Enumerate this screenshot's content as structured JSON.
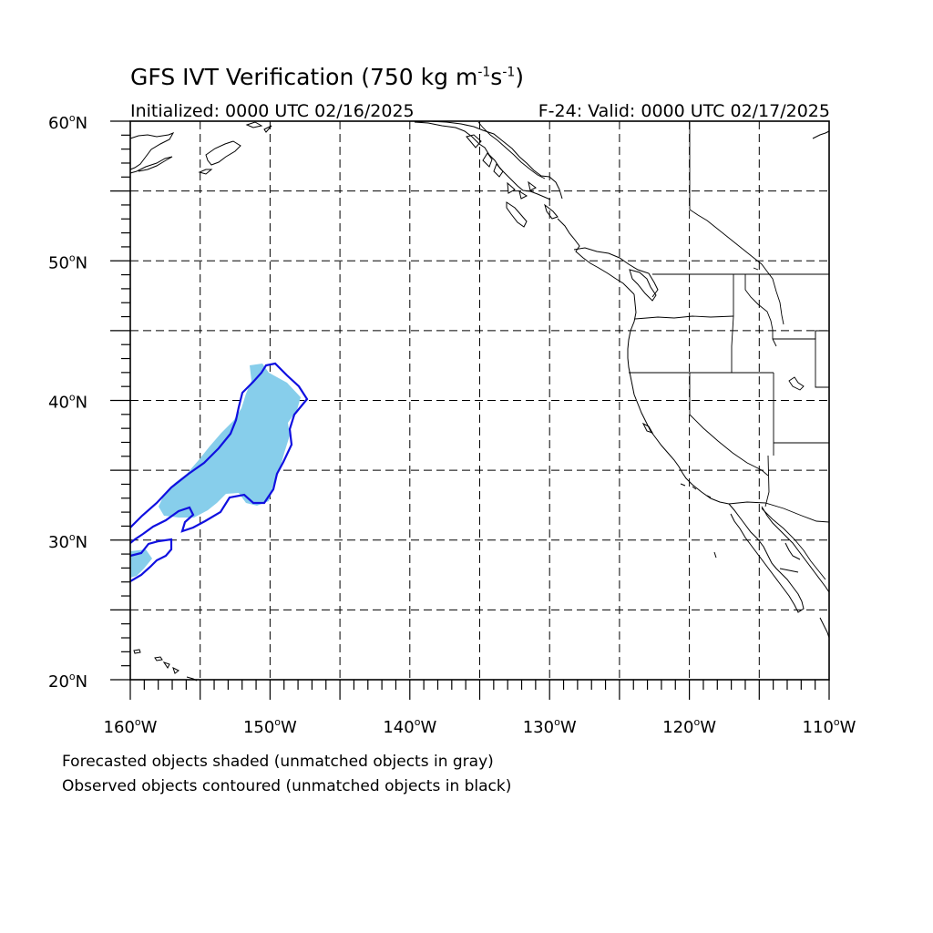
{
  "title": {
    "text": "GFS IVT Verification (750 kg m",
    "sup1": "-1",
    "mid": "s",
    "sup2": "-1",
    "end": ")"
  },
  "initialized": "Initialized: 0000 UTC 02/16/2025",
  "valid": "F-24: Valid: 0000 UTC 02/17/2025",
  "lat_labels": [
    "60",
    "50",
    "40",
    "30",
    "20"
  ],
  "lat_suffix": "N",
  "lon_labels": [
    "160",
    "150",
    "140",
    "130",
    "120",
    "110"
  ],
  "lon_suffix": "W",
  "footer": {
    "line1": "Forecasted objects shaded (unmatched objects in gray)",
    "line2": "Observed objects contoured (unmatched objects in black)"
  },
  "colors": {
    "forecast_fill": "#87ceeb",
    "observed_contour": "#1010e0",
    "coastline": "#000000",
    "grid": "#000000"
  }
}
